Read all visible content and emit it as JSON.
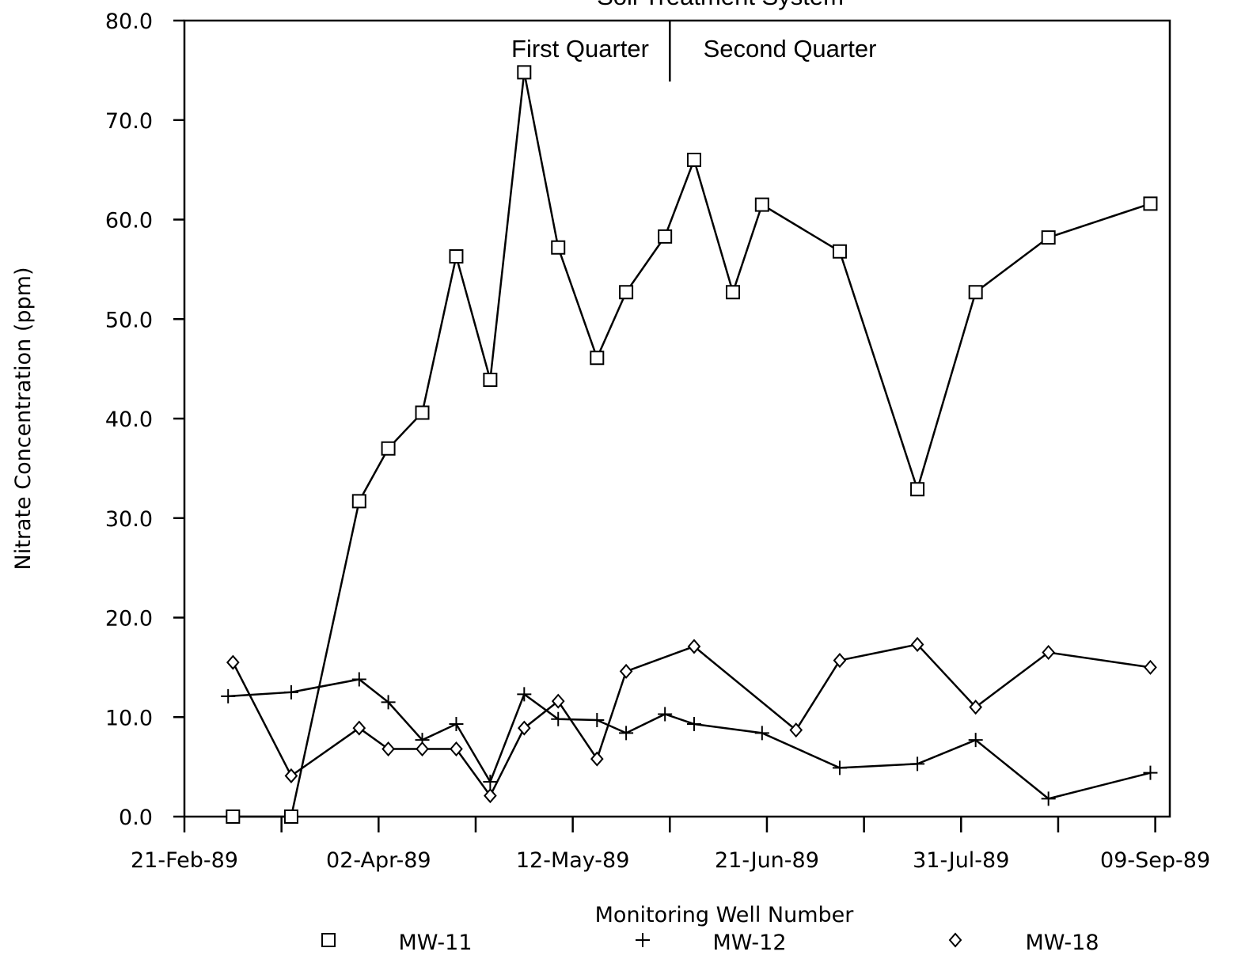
{
  "chart_data": {
    "type": "line",
    "title": "Soil Treatment System",
    "xlabel": "Monitoring Well Number",
    "ylabel": "Nitrate Concentration (ppm)",
    "annotations": [
      "First Quarter",
      "Second Quarter"
    ],
    "quarter_divider": "1989-06-01",
    "xlim": [
      "1989-02-21",
      "1989-09-12"
    ],
    "xticks": [
      {
        "value": "1989-02-21",
        "label": "21-Feb-89"
      },
      {
        "value": "1989-04-02",
        "label": "02-Apr-89"
      },
      {
        "value": "1989-05-12",
        "label": "12-May-89"
      },
      {
        "value": "1989-06-21",
        "label": "21-Jun-89"
      },
      {
        "value": "1989-07-31",
        "label": "31-Jul-89"
      },
      {
        "value": "1989-09-09",
        "label": "09-Sep-89"
      }
    ],
    "xminorticks": [
      "1989-03-13",
      "1989-04-22",
      "1989-06-01",
      "1989-07-11",
      "1989-08-20"
    ],
    "ylim": [
      0,
      80
    ],
    "yticks": [
      {
        "value": 0,
        "label": "0.0"
      },
      {
        "value": 10,
        "label": "10.0"
      },
      {
        "value": 20,
        "label": "20.0"
      },
      {
        "value": 30,
        "label": "30.0"
      },
      {
        "value": 40,
        "label": "40.0"
      },
      {
        "value": 50,
        "label": "50.0"
      },
      {
        "value": 60,
        "label": "60.0"
      },
      {
        "value": 70,
        "label": "70.0"
      },
      {
        "value": 80,
        "label": "80.0"
      }
    ],
    "grid": false,
    "legend": "bottom",
    "series": [
      {
        "name": "MW-11",
        "color": "#000000",
        "marker": "square",
        "x": [
          "1989-03-03",
          "1989-03-15",
          "1989-03-29",
          "1989-04-04",
          "1989-04-11",
          "1989-04-18",
          "1989-04-25",
          "1989-05-02",
          "1989-05-09",
          "1989-05-17",
          "1989-05-23",
          "1989-05-31",
          "1989-06-06",
          "1989-06-14",
          "1989-06-20",
          "1989-07-06",
          "1989-07-22",
          "1989-08-03",
          "1989-08-18",
          "1989-09-08"
        ],
        "values": [
          0,
          0,
          31.7,
          37.0,
          40.6,
          56.3,
          43.9,
          74.8,
          57.2,
          46.1,
          52.7,
          58.3,
          66.0,
          52.7,
          61.5,
          56.8,
          32.9,
          52.7,
          58.2,
          61.6
        ]
      },
      {
        "name": "MW-12",
        "color": "#000000",
        "marker": "plus",
        "x": [
          "1989-03-02",
          "1989-03-15",
          "1989-03-29",
          "1989-04-04",
          "1989-04-11",
          "1989-04-18",
          "1989-04-25",
          "1989-05-02",
          "1989-05-09",
          "1989-05-17",
          "1989-05-23",
          "1989-05-31",
          "1989-06-06",
          "1989-06-20",
          "1989-07-06",
          "1989-07-22",
          "1989-08-03",
          "1989-08-18",
          "1989-09-08"
        ],
        "values": [
          12.1,
          12.5,
          13.8,
          11.5,
          7.7,
          9.3,
          3.5,
          12.3,
          9.8,
          9.7,
          8.4,
          10.3,
          9.3,
          8.4,
          4.9,
          5.3,
          7.7,
          1.8,
          4.4
        ]
      },
      {
        "name": "MW-18",
        "color": "#000000",
        "marker": "diamond",
        "x": [
          "1989-03-03",
          "1989-03-15",
          "1989-03-29",
          "1989-04-04",
          "1989-04-11",
          "1989-04-18",
          "1989-04-25",
          "1989-05-02",
          "1989-05-09",
          "1989-05-17",
          "1989-05-23",
          "1989-06-06",
          "1989-06-27",
          "1989-07-06",
          "1989-07-22",
          "1989-08-03",
          "1989-08-18",
          "1989-09-08"
        ],
        "values": [
          15.5,
          4.1,
          8.9,
          6.8,
          6.8,
          6.8,
          2.1,
          8.9,
          11.6,
          5.8,
          14.6,
          17.1,
          8.7,
          15.7,
          17.3,
          11.0,
          16.5,
          15.0
        ]
      }
    ]
  }
}
